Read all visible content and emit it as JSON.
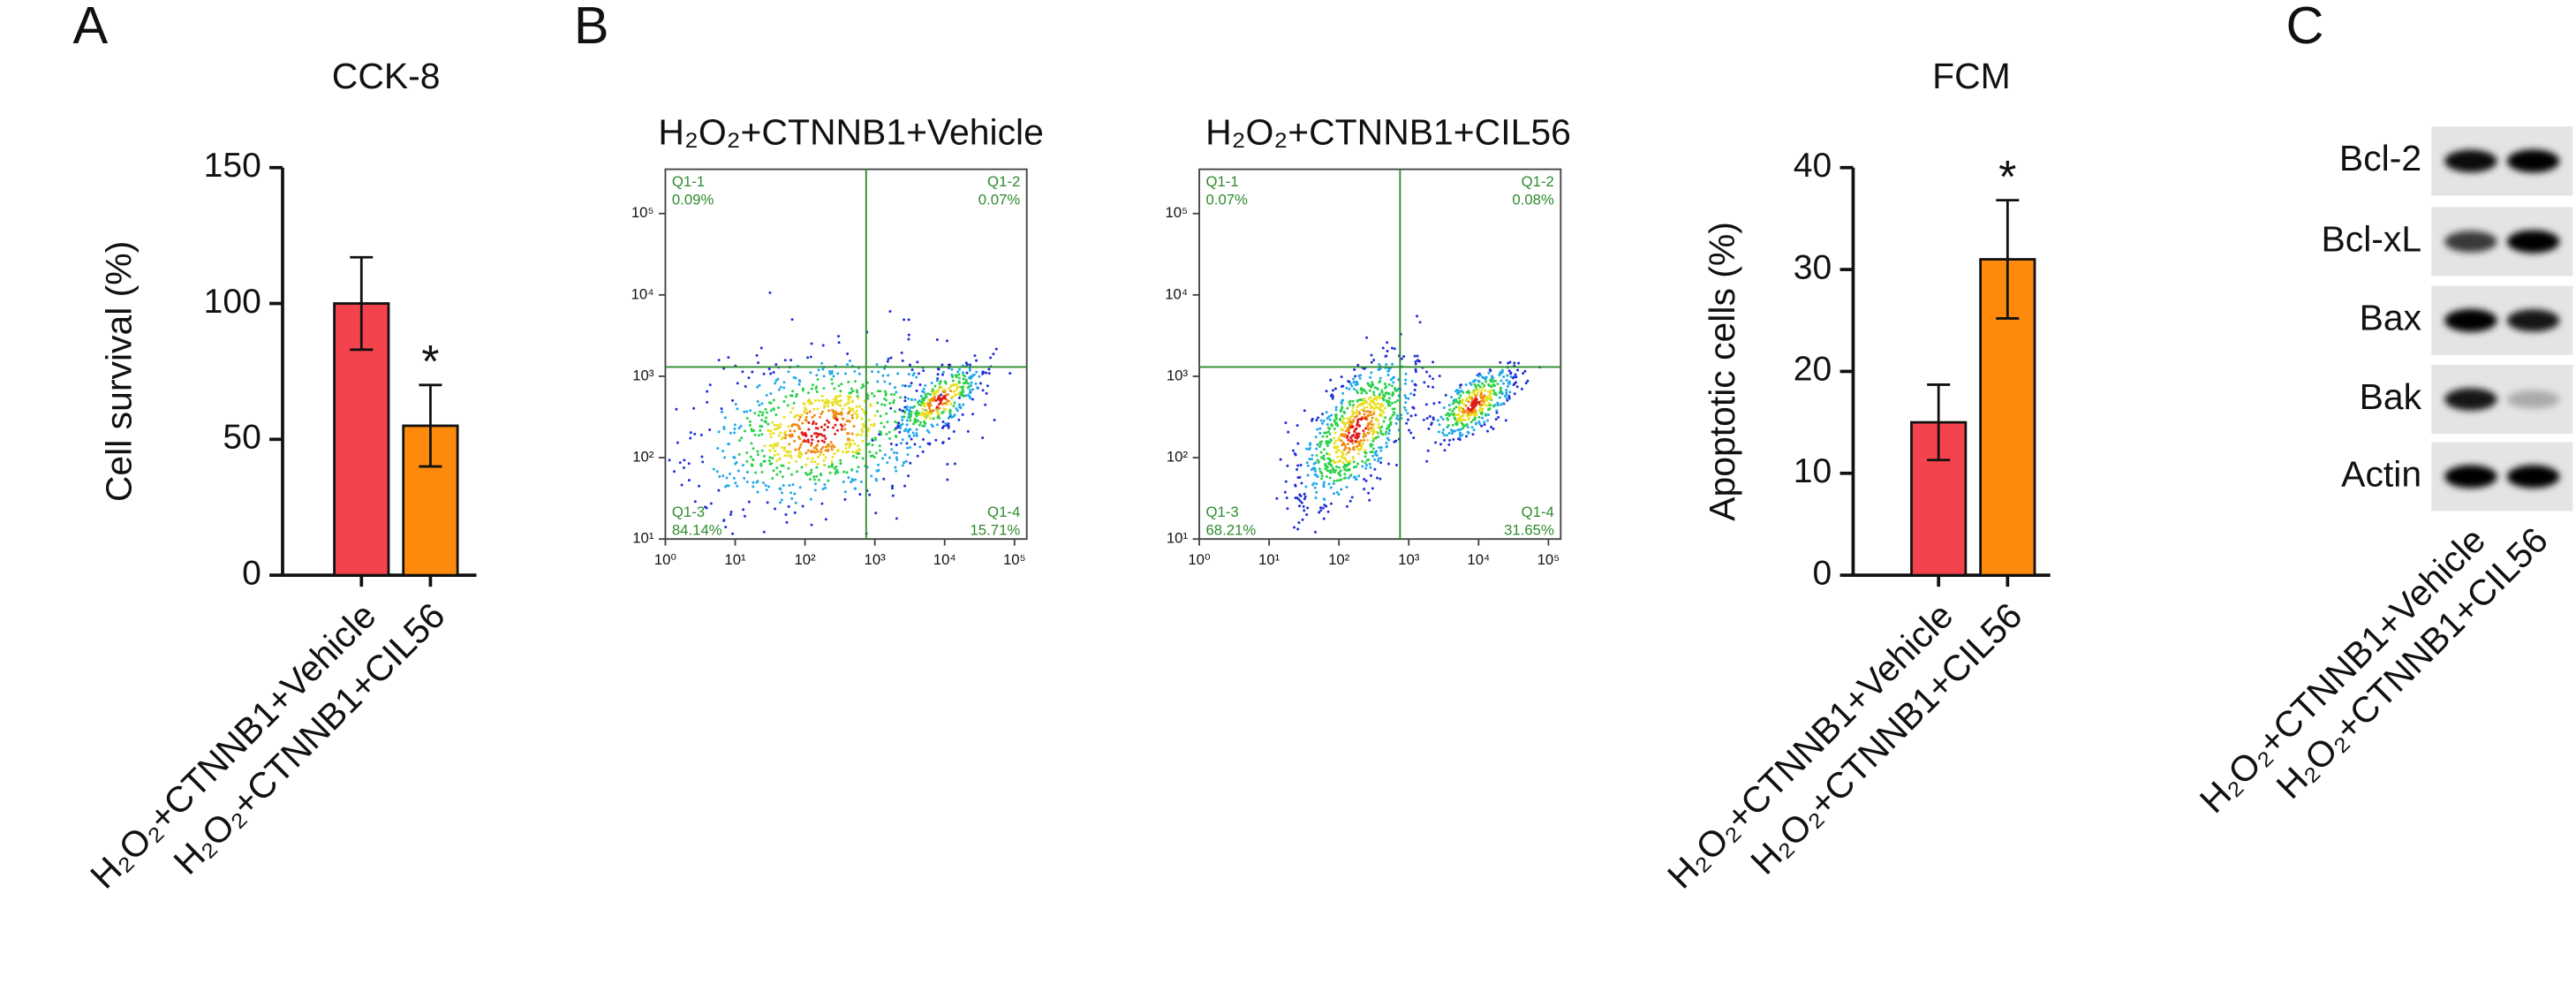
{
  "chart_data": [
    {
      "type": "bar",
      "panel": "A",
      "title": "CCK-8",
      "ylabel": "Cell survival (%)",
      "categories": [
        "H₂O₂+CTNNB1+Vehicle",
        "H₂O₂+CTNNB1+CIL56"
      ],
      "values": [
        100,
        55
      ],
      "errors": [
        17,
        15
      ],
      "colors": [
        "#f4434c",
        "#fd8a0c"
      ],
      "ylim": [
        0,
        150
      ],
      "yticks": [
        0,
        50,
        100,
        150
      ],
      "annotation": {
        "text": "*",
        "category": "H₂O₂+CTNNB1+CIL56"
      }
    },
    {
      "type": "flow-cytometry",
      "panel": "B",
      "title": "H₂O₂+CTNNB1+Vehicle",
      "log_scale": true,
      "xlim": [
        1,
        150000
      ],
      "ylim": [
        10,
        350000
      ],
      "xticks": [
        {
          "value": 1,
          "label": "10⁰"
        },
        {
          "value": 10,
          "label": "10¹"
        },
        {
          "value": 100,
          "label": "10²"
        },
        {
          "value": 1000,
          "label": "10³"
        },
        {
          "value": 10000,
          "label": "10⁴"
        },
        {
          "value": 100000,
          "label": "10⁵"
        }
      ],
      "yticks": [
        {
          "value": 10,
          "label": "10¹"
        },
        {
          "value": 100,
          "label": "10²"
        },
        {
          "value": 1000,
          "label": "10³"
        },
        {
          "value": 10000,
          "label": "10⁴"
        },
        {
          "value": 100000,
          "label": "10⁵"
        }
      ],
      "gate": {
        "x": 750,
        "y": 1300
      },
      "quadrants": [
        "Q1-1",
        "Q1-2",
        "Q1-3",
        "Q1-4"
      ],
      "values": [
        0.09,
        0.07,
        84.14,
        15.71
      ],
      "value_labels": [
        "0.09%",
        "0.07%",
        "84.14%",
        "15.71%"
      ]
    },
    {
      "type": "flow-cytometry",
      "title": "H₂O₂+CTNNB1+CIL56",
      "log_scale": true,
      "xlim": [
        1,
        150000
      ],
      "ylim": [
        10,
        350000
      ],
      "xticks": [
        {
          "value": 1,
          "label": "10⁰"
        },
        {
          "value": 10,
          "label": "10¹"
        },
        {
          "value": 100,
          "label": "10²"
        },
        {
          "value": 1000,
          "label": "10³"
        },
        {
          "value": 10000,
          "label": "10⁴"
        },
        {
          "value": 100000,
          "label": "10⁵"
        }
      ],
      "yticks": [
        {
          "value": 10,
          "label": "10¹"
        },
        {
          "value": 100,
          "label": "10²"
        },
        {
          "value": 1000,
          "label": "10³"
        },
        {
          "value": 10000,
          "label": "10⁴"
        },
        {
          "value": 100000,
          "label": "10⁵"
        }
      ],
      "gate": {
        "x": 750,
        "y": 1300
      },
      "quadrants": [
        "Q1-1",
        "Q1-2",
        "Q1-3",
        "Q1-4"
      ],
      "values": [
        0.07,
        0.08,
        68.21,
        31.65
      ],
      "value_labels": [
        "0.07%",
        "0.08%",
        "68.21%",
        "31.65%"
      ]
    },
    {
      "type": "bar",
      "title": "FCM",
      "ylabel": "Apoptotic cells (%)",
      "categories": [
        "H₂O₂+CTNNB1+Vehicle",
        "H₂O₂+CTNNB1+CIL56"
      ],
      "values": [
        15,
        31
      ],
      "errors": [
        3.7,
        5.8
      ],
      "colors": [
        "#f4434c",
        "#fd8a0c"
      ],
      "ylim": [
        0,
        40
      ],
      "yticks": [
        0,
        10,
        20,
        30,
        40
      ],
      "annotation": {
        "text": "*",
        "category": "H₂O₂+CTNNB1+CIL56"
      }
    },
    {
      "type": "western-blot",
      "panel": "C",
      "proteins": [
        "Bcl-2",
        "Bcl-xL",
        "Bax",
        "Bak",
        "Actin"
      ],
      "categories": [
        "H₂O₂+CTNNB1+Vehicle",
        "H₂O₂+CTNNB1+CIL56"
      ],
      "band_intensity": [
        [
          0.95,
          1
        ],
        [
          0.75,
          1
        ],
        [
          1,
          0.9
        ],
        [
          0.9,
          0.25
        ],
        [
          1,
          1
        ]
      ]
    }
  ]
}
